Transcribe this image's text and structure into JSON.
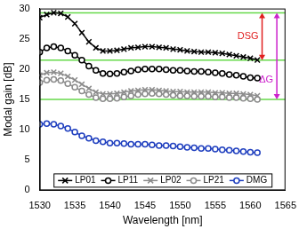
{
  "chart_data": {
    "type": "line",
    "x_label": "Wavelength [nm]",
    "y_label": "Modal gain [dB]",
    "x": [
      1530,
      1531,
      1532,
      1533,
      1534,
      1535,
      1536,
      1537,
      1538,
      1539,
      1540,
      1541,
      1542,
      1543,
      1544,
      1545,
      1546,
      1547,
      1548,
      1549,
      1550,
      1551,
      1552,
      1553,
      1554,
      1555,
      1556,
      1557,
      1558,
      1559,
      1560,
      1561
    ],
    "series": [
      {
        "name": "LP01",
        "color": "#000000",
        "marker": "x",
        "line_style": "solid",
        "values": [
          28.5,
          29.0,
          29.3,
          29.2,
          28.6,
          27.5,
          26.0,
          24.5,
          23.5,
          23.0,
          23.0,
          23.1,
          23.3,
          23.5,
          23.6,
          23.7,
          23.7,
          23.6,
          23.5,
          23.3,
          23.2,
          23.0,
          22.9,
          22.8,
          22.8,
          22.7,
          22.6,
          22.4,
          22.2,
          22.0,
          21.8,
          21.5
        ]
      },
      {
        "name": "LP11",
        "color": "#000000",
        "marker": "circle",
        "line_style": "solid",
        "values": [
          22.8,
          23.5,
          23.7,
          23.5,
          23.0,
          22.3,
          21.5,
          20.5,
          19.8,
          19.3,
          19.2,
          19.3,
          19.5,
          19.7,
          19.9,
          20.0,
          20.0,
          20.0,
          19.9,
          19.8,
          19.8,
          19.7,
          19.6,
          19.6,
          19.5,
          19.4,
          19.3,
          19.1,
          19.0,
          18.8,
          18.6,
          18.5
        ]
      },
      {
        "name": "LP02",
        "color": "#8c8c8c",
        "marker": "x",
        "line_style": "solid",
        "values": [
          19.0,
          19.4,
          19.5,
          19.3,
          18.8,
          18.2,
          17.5,
          16.8,
          16.2,
          15.9,
          15.9,
          16.0,
          16.2,
          16.4,
          16.5,
          16.6,
          16.6,
          16.5,
          16.4,
          16.3,
          16.3,
          16.2,
          16.2,
          16.2,
          16.2,
          16.1,
          16.1,
          16.0,
          16.0,
          15.9,
          15.8,
          15.6
        ]
      },
      {
        "name": "LP21",
        "color": "#8c8c8c",
        "marker": "circle",
        "line_style": "solid",
        "values": [
          17.8,
          18.2,
          18.3,
          18.1,
          17.6,
          17.0,
          16.4,
          15.8,
          15.3,
          15.1,
          15.1,
          15.2,
          15.4,
          15.6,
          15.8,
          15.9,
          16.0,
          15.9,
          15.8,
          15.7,
          15.6,
          15.6,
          15.5,
          15.5,
          15.5,
          15.4,
          15.4,
          15.3,
          15.3,
          15.2,
          15.1,
          15.0
        ]
      },
      {
        "name": "DMG",
        "color": "#1f3fbf",
        "marker": "circle",
        "line_style": "solid",
        "values": [
          10.9,
          11.0,
          10.9,
          10.6,
          10.2,
          9.6,
          9.0,
          8.6,
          8.2,
          8.0,
          7.8,
          7.8,
          7.7,
          7.6,
          7.6,
          7.6,
          7.5,
          7.4,
          7.4,
          7.3,
          7.2,
          7.1,
          7.0,
          6.9,
          6.9,
          6.8,
          6.7,
          6.6,
          6.5,
          6.4,
          6.3,
          6.2
        ]
      }
    ],
    "xlim": [
      1530,
      1565
    ],
    "xticks": [
      1530,
      1535,
      1540,
      1545,
      1550,
      1555,
      1560,
      1565
    ],
    "ylim": [
      0,
      30
    ],
    "yticks": [
      0,
      5,
      10,
      15,
      20,
      25,
      30
    ],
    "grid": false,
    "legend": "bottom",
    "reference_lines": [
      29.3,
      21.5,
      15
    ],
    "annotations": [
      {
        "text": "DSG",
        "from": 29.3,
        "to": 21.5
      },
      {
        "text": "ΔG",
        "from": 29.3,
        "to": 15
      }
    ]
  }
}
